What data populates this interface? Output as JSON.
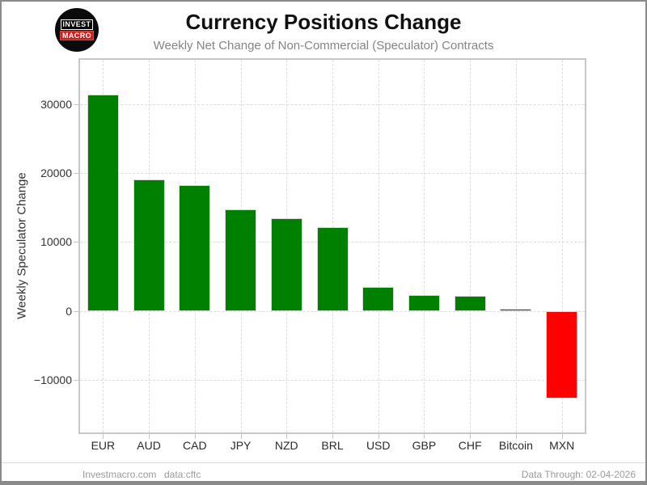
{
  "header": {
    "title": "Currency Positions Change",
    "subtitle": "Weekly Net Change of Non-Commercial (Speculator) Contracts",
    "logo": {
      "line1": "INVEST",
      "line2": "MACRO"
    }
  },
  "footer": {
    "site": "Investmacro.com",
    "source": "data:cftc",
    "data_through": "Data Through: 02-04-2026"
  },
  "chart_data": {
    "type": "bar",
    "title": "Currency Positions Change",
    "subtitle": "Weekly Net Change of Non-Commercial (Speculator) Contracts",
    "categories": [
      "EUR",
      "AUD",
      "CAD",
      "JPY",
      "NZD",
      "BRL",
      "USD",
      "GBP",
      "CHF",
      "Bitcoin",
      "MXN"
    ],
    "values": [
      31400,
      19100,
      18200,
      14700,
      13400,
      12200,
      3500,
      2300,
      2200,
      300,
      -12700
    ],
    "xlabel": "",
    "ylabel": "Weekly Speculator Change",
    "yticks": [
      30000,
      20000,
      10000,
      0,
      -10000
    ],
    "ytick_labels": [
      "30000",
      "20000",
      "10000",
      "0",
      "−10000"
    ],
    "ylim": [
      -17600,
      36400
    ],
    "grid": "dashed",
    "legend": "none",
    "positive_color": "#008000",
    "negative_color": "#ff0000"
  }
}
